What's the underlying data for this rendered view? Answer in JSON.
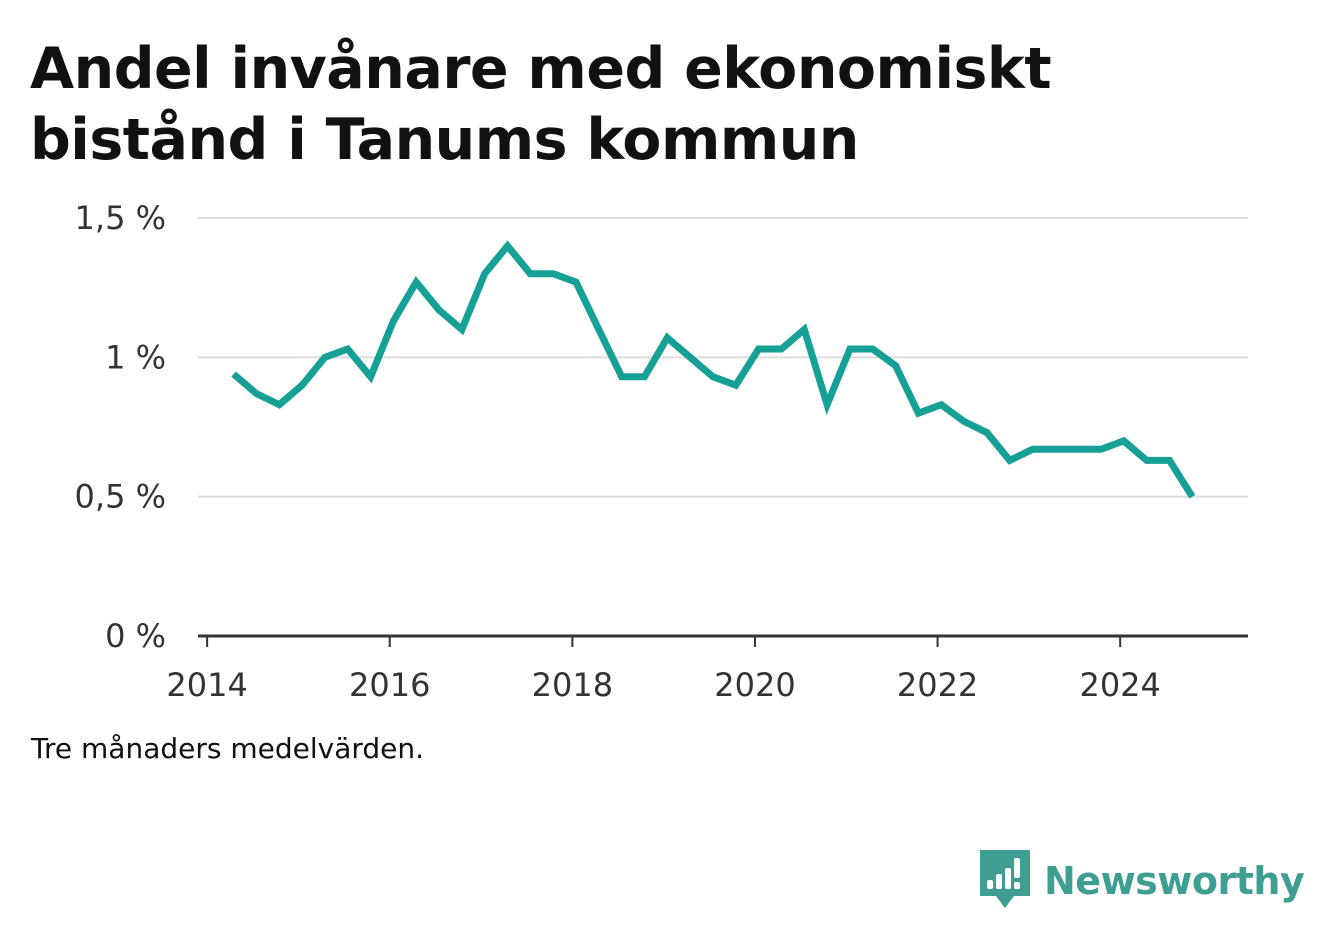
{
  "title": "Andel invånare med ekonomiskt bistånd i Tanums kommun",
  "note": "Tre månaders medelvärden.",
  "brand": {
    "name": "Newsworthy",
    "logo_icon": "bar-chart-speech-bubble-icon",
    "color": "#3d9e91"
  },
  "colors": {
    "series": "#16a096",
    "gridline": "#dddddd",
    "axis": "#333333"
  },
  "chart_data": {
    "type": "line",
    "title": "Andel invånare med ekonomiskt bistånd i Tanums kommun",
    "xlabel": "",
    "ylabel": "",
    "xlim": [
      2013.9,
      2025.4
    ],
    "ylim": [
      0,
      1.5
    ],
    "grid": true,
    "y_ticks": [
      {
        "value": 0,
        "label": "0 %"
      },
      {
        "value": 0.5,
        "label": "0,5 %"
      },
      {
        "value": 1.0,
        "label": "1 %"
      },
      {
        "value": 1.5,
        "label": "1,5 %"
      }
    ],
    "x_ticks": [
      {
        "value": 2014,
        "label": "2014"
      },
      {
        "value": 2016,
        "label": "2016"
      },
      {
        "value": 2018,
        "label": "2018"
      },
      {
        "value": 2020,
        "label": "2020"
      },
      {
        "value": 2022,
        "label": "2022"
      },
      {
        "value": 2024,
        "label": "2024"
      }
    ],
    "series": [
      {
        "x": [
          2014.29,
          2014.54,
          2014.79,
          2015.04,
          2015.29,
          2015.54,
          2015.79,
          2016.04,
          2016.29,
          2016.54,
          2016.79,
          2017.04,
          2017.29,
          2017.54,
          2017.79,
          2018.04,
          2018.29,
          2018.54,
          2018.79,
          2019.04,
          2019.29,
          2019.54,
          2019.79,
          2020.04,
          2020.29,
          2020.54,
          2020.79,
          2021.04,
          2021.29,
          2021.54,
          2021.79,
          2022.04,
          2022.29,
          2022.54,
          2022.79,
          2023.04,
          2023.29,
          2023.54,
          2023.79,
          2024.04,
          2024.29,
          2024.54,
          2024.79
        ],
        "y": [
          0.94,
          0.87,
          0.83,
          0.9,
          1.0,
          1.03,
          0.93,
          1.13,
          1.27,
          1.17,
          1.1,
          1.3,
          1.4,
          1.3,
          1.3,
          1.27,
          1.1,
          0.93,
          0.93,
          1.07,
          1.0,
          0.93,
          0.9,
          1.03,
          1.03,
          1.1,
          0.83,
          1.03,
          1.03,
          0.97,
          0.8,
          0.83,
          0.77,
          0.73,
          0.63,
          0.67,
          0.67,
          0.67,
          0.67,
          0.7,
          0.63,
          0.63,
          0.5
        ]
      }
    ]
  }
}
